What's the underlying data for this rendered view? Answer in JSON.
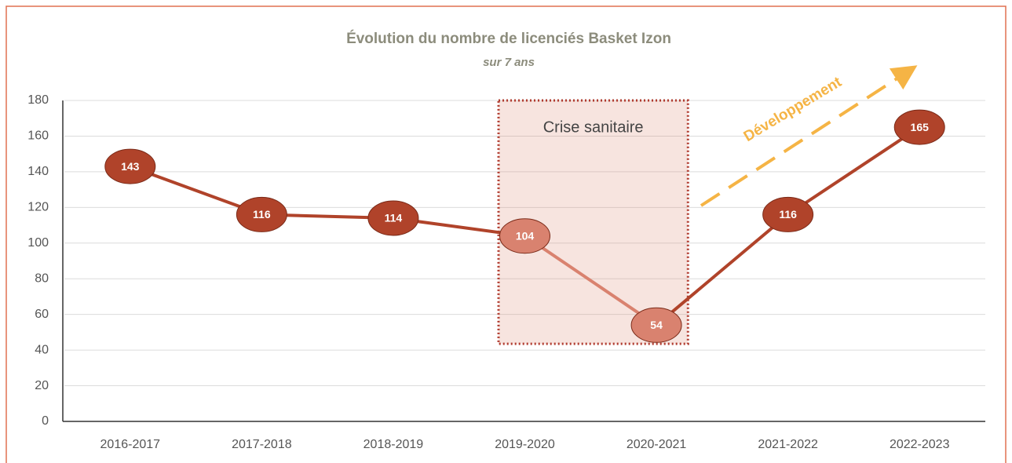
{
  "chart_data": {
    "type": "line",
    "title": "Évolution du nombre de licenciés Basket Izon",
    "subtitle": "sur 7 ans",
    "categories": [
      "2016-2017",
      "2017-2018",
      "2018-2019",
      "2019-2020",
      "2020-2021",
      "2021-2022",
      "2022-2023"
    ],
    "series": [
      {
        "name": "Licenciés",
        "color": "#b0432a",
        "values": [
          143,
          116,
          114,
          104,
          54,
          116,
          165
        ]
      }
    ],
    "ylim": [
      0,
      180
    ],
    "yticks": [
      0,
      20,
      40,
      60,
      80,
      100,
      120,
      140,
      160,
      180
    ],
    "grid": true,
    "annotations": [
      {
        "text": "Crise sanitaire",
        "from": "2019-2020",
        "to": "2020-2021",
        "color": "#d9826f"
      },
      {
        "text": "Développement",
        "color": "#f5b445"
      }
    ]
  }
}
